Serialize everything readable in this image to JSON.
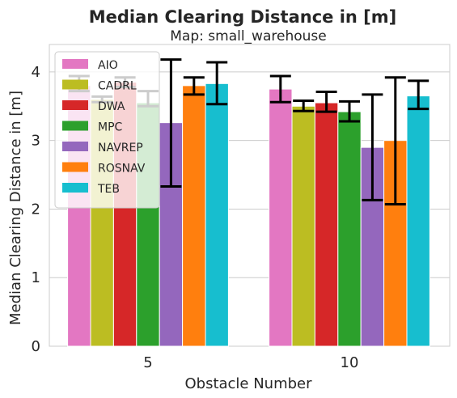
{
  "chart_data": {
    "type": "bar",
    "title": "Median Clearing Distance in [m]",
    "subtitle": "Map: small_warehouse",
    "xlabel": "Obstacle Number",
    "ylabel": "Median Clearing Distance in [m]",
    "categories": [
      "5",
      "10"
    ],
    "ylim": [
      0,
      4.4
    ],
    "yticks": [
      0,
      1,
      2,
      3,
      4
    ],
    "grid": true,
    "legend_position": "top-left",
    "series": [
      {
        "name": "AIO",
        "color": "#e377c2",
        "values": [
          3.8,
          3.75
        ],
        "err_low": [
          3.72,
          3.56
        ],
        "err_high": [
          3.94,
          3.94
        ]
      },
      {
        "name": "CADRL",
        "color": "#bcbd22",
        "values": [
          3.6,
          3.5
        ],
        "err_low": [
          3.56,
          3.43
        ],
        "err_high": [
          3.64,
          3.58
        ]
      },
      {
        "name": "DWA",
        "color": "#d62728",
        "values": [
          3.85,
          3.55
        ],
        "err_low": [
          3.78,
          3.42
        ],
        "err_high": [
          3.92,
          3.71
        ]
      },
      {
        "name": "MPC",
        "color": "#2ca02c",
        "values": [
          3.55,
          3.42
        ],
        "err_low": [
          3.5,
          3.28
        ],
        "err_high": [
          3.72,
          3.57
        ]
      },
      {
        "name": "NAVREP",
        "color": "#9467bd",
        "values": [
          3.26,
          2.9
        ],
        "err_low": [
          2.33,
          2.13
        ],
        "err_high": [
          4.18,
          3.67
        ]
      },
      {
        "name": "ROSNAV",
        "color": "#ff7f0e",
        "values": [
          3.8,
          3.0
        ],
        "err_low": [
          3.67,
          2.07
        ],
        "err_high": [
          3.92,
          3.92
        ]
      },
      {
        "name": "TEB",
        "color": "#17becf",
        "values": [
          3.83,
          3.65
        ],
        "err_low": [
          3.53,
          3.46
        ],
        "err_high": [
          4.14,
          3.87
        ]
      }
    ]
  }
}
